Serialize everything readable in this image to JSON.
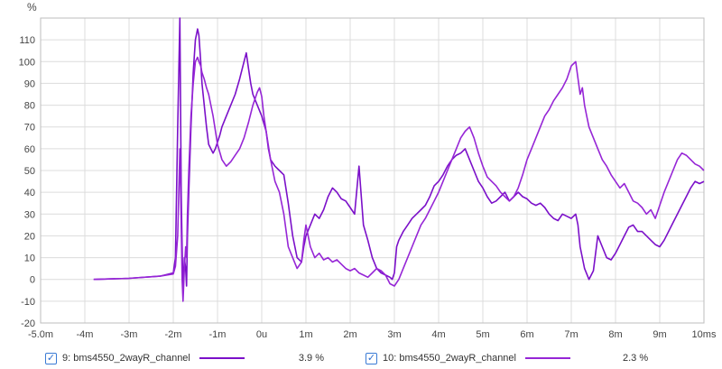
{
  "chart_data": {
    "type": "line",
    "ylabel": "%",
    "xlim": [
      -5.0,
      10.0
    ],
    "ylim": [
      -20,
      120
    ],
    "grid": true,
    "x_ticks": [
      {
        "value": -5.0,
        "label": "-5.0m"
      },
      {
        "value": -4,
        "label": "-4m"
      },
      {
        "value": -3,
        "label": "-3m"
      },
      {
        "value": -2,
        "label": "-2m"
      },
      {
        "value": -1,
        "label": "-1m"
      },
      {
        "value": 0,
        "label": "0u"
      },
      {
        "value": 1,
        "label": "1m"
      },
      {
        "value": 2,
        "label": "2m"
      },
      {
        "value": 3,
        "label": "3m"
      },
      {
        "value": 4,
        "label": "4m"
      },
      {
        "value": 5,
        "label": "5m"
      },
      {
        "value": 6,
        "label": "6m"
      },
      {
        "value": 7,
        "label": "7m"
      },
      {
        "value": 8,
        "label": "8m"
      },
      {
        "value": 9,
        "label": "9m"
      },
      {
        "value": 10,
        "label": "10ms"
      }
    ],
    "y_ticks": [
      -20,
      -10,
      0,
      10,
      20,
      30,
      40,
      50,
      60,
      70,
      80,
      90,
      100,
      110
    ],
    "series": [
      {
        "name": "9: bms4550_2wayR_channel",
        "value_label": "3.9 %",
        "color": "#7b10c9",
        "x": [
          -3.8,
          -3.0,
          -2.3,
          -2.0,
          -1.95,
          -1.9,
          -1.85,
          -1.82,
          -1.8,
          -1.78,
          -1.75,
          -1.72,
          -1.7,
          -1.68,
          -1.65,
          -1.6,
          -1.55,
          -1.5,
          -1.45,
          -1.42,
          -1.38,
          -1.35,
          -1.3,
          -1.25,
          -1.2,
          -1.15,
          -1.1,
          -1.05,
          -1.0,
          -0.95,
          -0.9,
          -0.8,
          -0.7,
          -0.6,
          -0.5,
          -0.4,
          -0.35,
          -0.3,
          -0.25,
          -0.2,
          -0.1,
          0.0,
          0.1,
          0.15,
          0.2,
          0.3,
          0.4,
          0.5,
          0.6,
          0.7,
          0.8,
          0.9,
          0.95,
          1.0,
          1.1,
          1.2,
          1.3,
          1.4,
          1.5,
          1.6,
          1.7,
          1.8,
          1.9,
          2.0,
          2.1,
          2.2,
          2.3,
          2.4,
          2.5,
          2.6,
          2.7,
          2.8,
          2.9,
          2.95,
          3.0,
          3.05,
          3.1,
          3.2,
          3.3,
          3.4,
          3.5,
          3.6,
          3.7,
          3.8,
          3.9,
          4.0,
          4.1,
          4.2,
          4.3,
          4.4,
          4.5,
          4.6,
          4.7,
          4.8,
          4.9,
          5.0,
          5.1,
          5.2,
          5.3,
          5.4,
          5.5,
          5.6,
          5.7,
          5.8,
          5.9,
          6.0,
          6.1,
          6.2,
          6.3,
          6.4,
          6.5,
          6.6,
          6.7,
          6.8,
          6.9,
          7.0,
          7.1,
          7.15,
          7.2,
          7.3,
          7.4,
          7.5,
          7.6,
          7.7,
          7.8,
          7.9,
          8.0,
          8.1,
          8.2,
          8.3,
          8.4,
          8.5,
          8.6,
          8.7,
          8.8,
          8.9,
          9.0,
          9.1,
          9.2,
          9.3,
          9.4,
          9.5,
          9.6,
          9.7,
          9.8,
          9.9,
          10.0
        ],
        "y": [
          0,
          0.5,
          1.5,
          3,
          10,
          70,
          120,
          40,
          15,
          -5,
          10,
          5,
          -3,
          20,
          40,
          70,
          95,
          110,
          115,
          112,
          100,
          90,
          80,
          70,
          62,
          60,
          58,
          60,
          63,
          66,
          70,
          75,
          80,
          85,
          92,
          100,
          104,
          97,
          90,
          85,
          80,
          75,
          68,
          60,
          55,
          52,
          50,
          48,
          35,
          20,
          10,
          8,
          15,
          20,
          25,
          30,
          28,
          32,
          38,
          42,
          40,
          37,
          36,
          33,
          30,
          52,
          25,
          18,
          10,
          5,
          3,
          2,
          1,
          0,
          3,
          15,
          18,
          22,
          25,
          28,
          30,
          32,
          34,
          38,
          43,
          45,
          48,
          52,
          55,
          57,
          58,
          60,
          55,
          50,
          45,
          42,
          38,
          35,
          36,
          38,
          40,
          36,
          38,
          40,
          38,
          37,
          35,
          34,
          35,
          33,
          30,
          28,
          27,
          30,
          29,
          28,
          30,
          25,
          15,
          5,
          0,
          4,
          20,
          15,
          10,
          9,
          12,
          16,
          20,
          24,
          25,
          22,
          22,
          20,
          18,
          16,
          15,
          18,
          22,
          26,
          30,
          34,
          38,
          42,
          45,
          44,
          45
        ]
      },
      {
        "name": "10: bms4550_2wayR_channel",
        "value_label": "2.3 %",
        "color": "#9626d6",
        "x": [
          -3.8,
          -3.0,
          -2.3,
          -2.0,
          -1.95,
          -1.9,
          -1.85,
          -1.82,
          -1.8,
          -1.78,
          -1.75,
          -1.72,
          -1.7,
          -1.68,
          -1.65,
          -1.6,
          -1.55,
          -1.5,
          -1.45,
          -1.42,
          -1.38,
          -1.35,
          -1.3,
          -1.25,
          -1.2,
          -1.1,
          -1.0,
          -0.9,
          -0.8,
          -0.7,
          -0.6,
          -0.5,
          -0.4,
          -0.3,
          -0.2,
          -0.1,
          -0.05,
          0.0,
          0.05,
          0.1,
          0.2,
          0.3,
          0.4,
          0.5,
          0.6,
          0.7,
          0.8,
          0.9,
          0.95,
          1.0,
          1.1,
          1.2,
          1.3,
          1.4,
          1.5,
          1.6,
          1.7,
          1.8,
          1.9,
          2.0,
          2.1,
          2.2,
          2.3,
          2.4,
          2.5,
          2.6,
          2.7,
          2.8,
          2.9,
          3.0,
          3.1,
          3.2,
          3.3,
          3.4,
          3.5,
          3.6,
          3.7,
          3.8,
          3.9,
          4.0,
          4.1,
          4.2,
          4.3,
          4.4,
          4.5,
          4.6,
          4.7,
          4.8,
          4.9,
          5.0,
          5.1,
          5.2,
          5.3,
          5.4,
          5.5,
          5.6,
          5.7,
          5.8,
          5.9,
          6.0,
          6.1,
          6.2,
          6.3,
          6.4,
          6.5,
          6.6,
          6.7,
          6.8,
          6.9,
          7.0,
          7.1,
          7.2,
          7.25,
          7.3,
          7.35,
          7.4,
          7.5,
          7.6,
          7.7,
          7.8,
          7.9,
          8.0,
          8.1,
          8.2,
          8.3,
          8.4,
          8.5,
          8.6,
          8.7,
          8.8,
          8.9,
          9.0,
          9.1,
          9.2,
          9.3,
          9.4,
          9.5,
          9.6,
          9.7,
          9.8,
          9.9,
          10.0
        ],
        "y": [
          0,
          0.5,
          1.5,
          2.5,
          6,
          20,
          60,
          25,
          0,
          -10,
          5,
          15,
          10,
          30,
          50,
          75,
          90,
          100,
          102,
          100,
          98,
          95,
          92,
          88,
          85,
          75,
          62,
          55,
          52,
          54,
          57,
          60,
          65,
          72,
          80,
          86,
          88,
          84,
          75,
          68,
          55,
          45,
          40,
          30,
          15,
          10,
          5,
          8,
          18,
          25,
          15,
          10,
          12,
          9,
          10,
          8,
          9,
          7,
          5,
          4,
          5,
          3,
          2,
          1,
          3,
          5,
          4,
          2,
          -2,
          -3,
          0,
          5,
          10,
          15,
          20,
          25,
          28,
          32,
          36,
          40,
          45,
          50,
          55,
          60,
          65,
          68,
          70,
          65,
          58,
          52,
          47,
          45,
          43,
          40,
          38,
          36,
          38,
          42,
          48,
          55,
          60,
          65,
          70,
          75,
          78,
          82,
          85,
          88,
          92,
          98,
          100,
          85,
          88,
          80,
          75,
          70,
          65,
          60,
          55,
          52,
          48,
          45,
          42,
          44,
          40,
          36,
          35,
          33,
          30,
          32,
          28,
          34,
          40,
          45,
          50,
          55,
          58,
          57,
          55,
          53,
          52,
          50
        ]
      }
    ]
  }
}
